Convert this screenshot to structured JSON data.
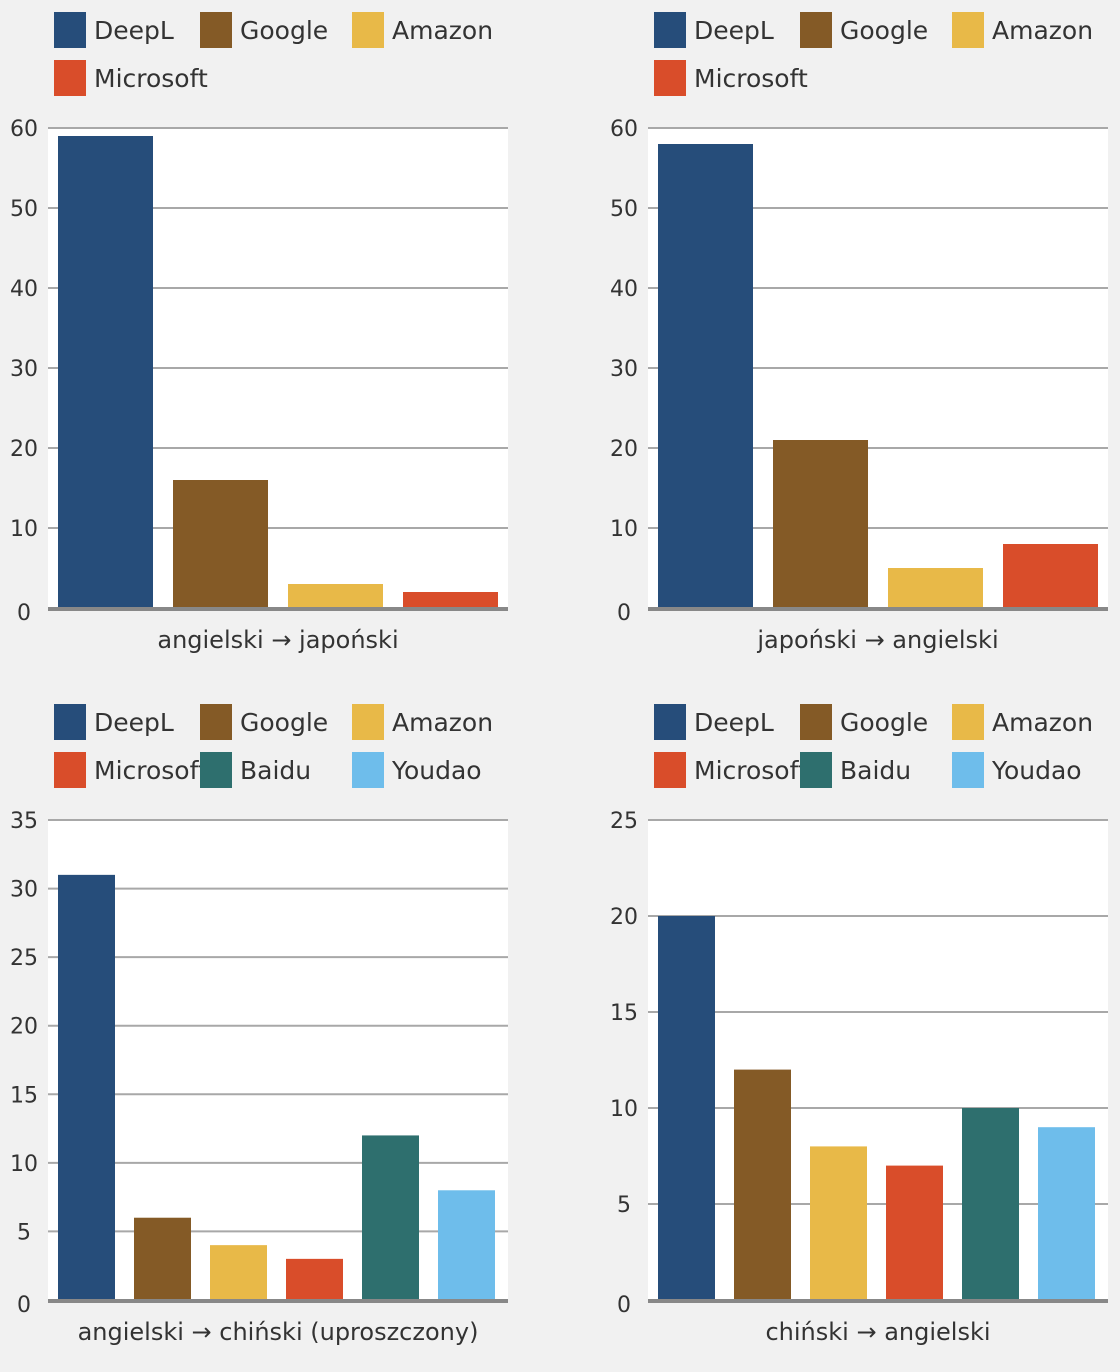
{
  "colors": {
    "DeepL": "#264d7a",
    "Google": "#845a26",
    "Amazon": "#e8b948",
    "Microsoft": "#d94d2a",
    "Baidu": "#2e6f6e",
    "Youdao": "#6ebdeb"
  },
  "chart_data": [
    {
      "type": "bar",
      "title": "",
      "xlabel": "angielski → japoński",
      "ylabel": "",
      "categories": [
        "DeepL",
        "Google",
        "Amazon",
        "Microsoft"
      ],
      "values": [
        59,
        16,
        3,
        2
      ],
      "ylim": [
        0,
        60
      ],
      "yticks": [
        0,
        10,
        20,
        30,
        40,
        50,
        60
      ],
      "legend": [
        "DeepL",
        "Google",
        "Amazon",
        "Microsoft"
      ],
      "legend_position": "top",
      "grid": true
    },
    {
      "type": "bar",
      "title": "",
      "xlabel": "japoński → angielski",
      "ylabel": "",
      "categories": [
        "DeepL",
        "Google",
        "Amazon",
        "Microsoft"
      ],
      "values": [
        58,
        21,
        5,
        8
      ],
      "ylim": [
        0,
        60
      ],
      "yticks": [
        0,
        10,
        20,
        30,
        40,
        50,
        60
      ],
      "legend": [
        "DeepL",
        "Google",
        "Amazon",
        "Microsoft"
      ],
      "legend_position": "top",
      "grid": true
    },
    {
      "type": "bar",
      "title": "",
      "xlabel": "angielski → chiński (uproszczony)",
      "ylabel": "",
      "categories": [
        "DeepL",
        "Google",
        "Amazon",
        "Microsoft",
        "Baidu",
        "Youdao"
      ],
      "values": [
        31,
        6,
        4,
        3,
        12,
        8
      ],
      "ylim": [
        0,
        35
      ],
      "yticks": [
        0,
        5,
        10,
        15,
        20,
        25,
        30,
        35
      ],
      "legend": [
        "DeepL",
        "Google",
        "Amazon",
        "Microsoft",
        "Baidu",
        "Youdao"
      ],
      "legend_position": "top",
      "grid": true
    },
    {
      "type": "bar",
      "title": "",
      "xlabel": "chiński → angielski",
      "ylabel": "",
      "categories": [
        "DeepL",
        "Google",
        "Amazon",
        "Microsoft",
        "Baidu",
        "Youdao"
      ],
      "values": [
        20,
        12,
        8,
        7,
        10,
        9
      ],
      "ylim": [
        0,
        25
      ],
      "yticks": [
        0,
        5,
        10,
        15,
        20,
        25
      ],
      "legend": [
        "DeepL",
        "Google",
        "Amazon",
        "Microsoft",
        "Baidu",
        "Youdao"
      ],
      "legend_position": "top",
      "grid": true
    }
  ]
}
